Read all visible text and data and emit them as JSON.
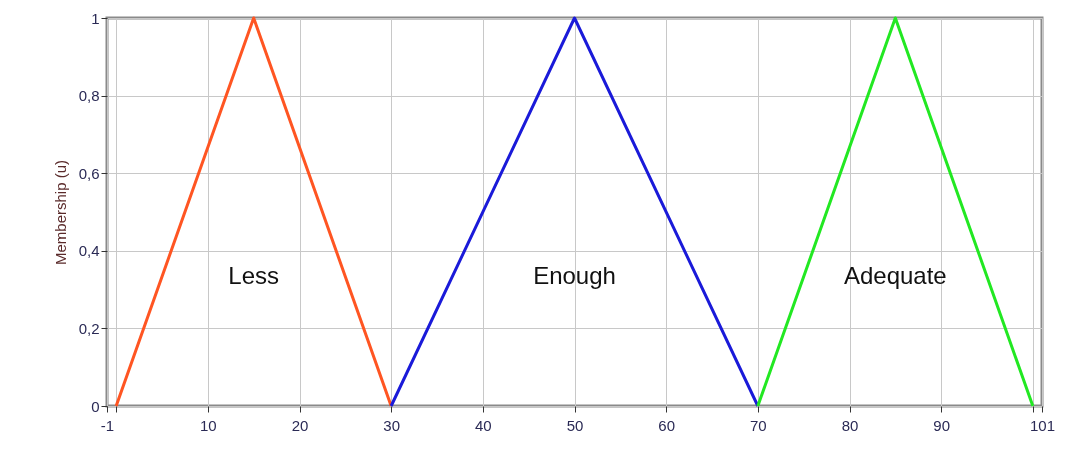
{
  "chart_data": {
    "type": "line",
    "ylabel": "Membership (u)",
    "xlim": [
      -1,
      101
    ],
    "xticks": [
      -1,
      {
        "value": 0,
        "label": null
      },
      10,
      20,
      30,
      40,
      50,
      60,
      70,
      80,
      90,
      {
        "value": 100,
        "label": null
      },
      101
    ],
    "ylim": [
      0,
      1
    ],
    "yticks": [
      0,
      {
        "value": 0.2,
        "label": "0,2"
      },
      {
        "value": 0.4,
        "label": "0,4"
      },
      {
        "value": 0.6,
        "label": "0,6"
      },
      {
        "value": 0.8,
        "label": "0,8"
      },
      1
    ],
    "grid": true,
    "line_style": "solid",
    "marker": "none",
    "series": [
      {
        "name": "Less",
        "color": "#ff5522",
        "x": [
          0,
          15,
          30
        ],
        "values": [
          0,
          1,
          0
        ]
      },
      {
        "name": "Enough",
        "color": "#1a1ad9",
        "x": [
          30,
          50,
          70
        ],
        "values": [
          0,
          1,
          0
        ]
      },
      {
        "name": "Adequate",
        "color": "#22e822",
        "x": [
          70,
          85,
          100
        ],
        "values": [
          0,
          1,
          0
        ]
      }
    ]
  }
}
